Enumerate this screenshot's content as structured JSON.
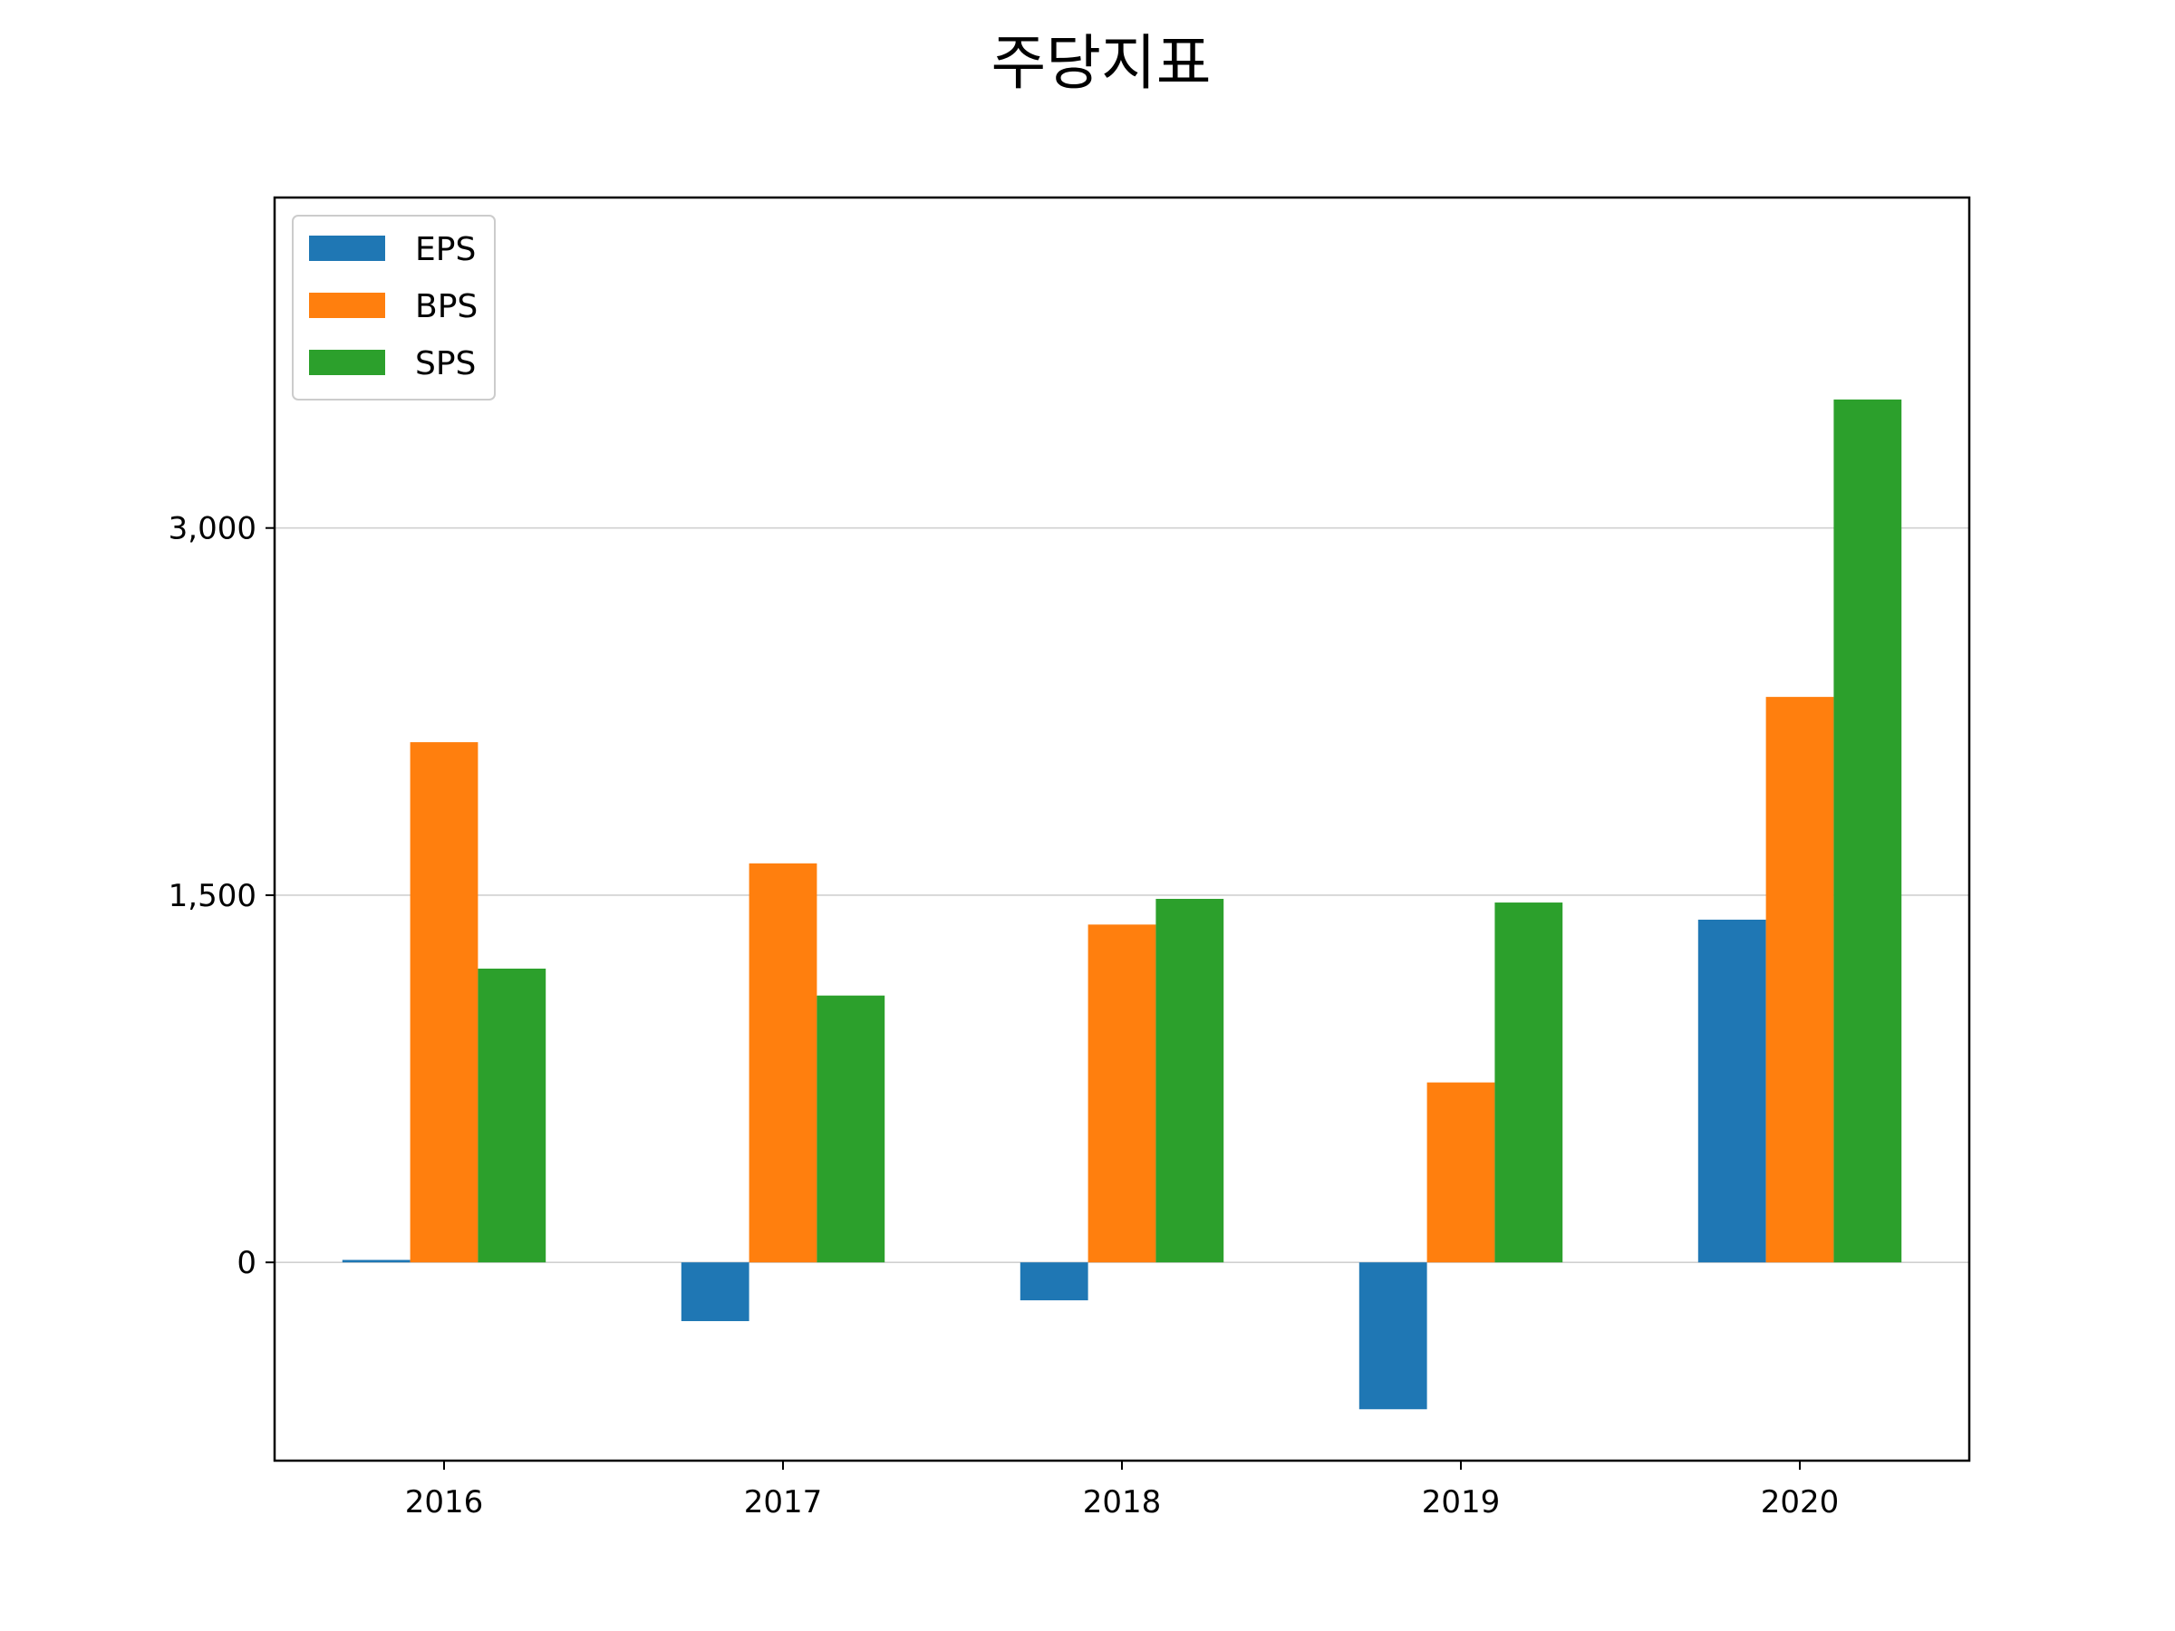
{
  "chart_data": {
    "type": "bar",
    "title": "주당지표",
    "xlabel": "",
    "ylabel": "",
    "categories": [
      "2016",
      "2017",
      "2018",
      "2019",
      "2020"
    ],
    "series": [
      {
        "name": "EPS",
        "color": "#1f77b4",
        "values": [
          10,
          -240,
          -155,
          -600,
          1400
        ]
      },
      {
        "name": "BPS",
        "color": "#ff7f0e",
        "values": [
          2125,
          1630,
          1380,
          735,
          2310
        ]
      },
      {
        "name": "SPS",
        "color": "#2ca02c",
        "values": [
          1200,
          1090,
          1485,
          1470,
          3525
        ]
      }
    ],
    "ylim": [
      -810,
      4350
    ],
    "yticks": [
      0,
      1500,
      3000
    ],
    "ytick_labels": [
      "0",
      "1,500",
      "3,000"
    ],
    "grid": "y",
    "legend": "top-left"
  }
}
